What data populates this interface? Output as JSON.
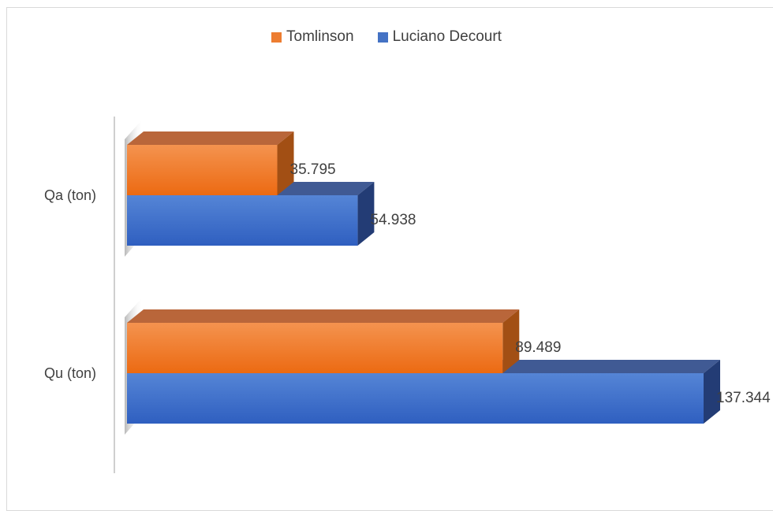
{
  "chart_data": {
    "type": "bar",
    "orientation": "horizontal",
    "style": "3d",
    "categories": [
      "Qa (ton)",
      "Qu (ton)"
    ],
    "series": [
      {
        "name": "Tomlinson",
        "values": [
          35.795,
          89.489
        ],
        "color": "#ED7D31"
      },
      {
        "name": "Luciano Decourt",
        "values": [
          54.938,
          137.344
        ],
        "color": "#4472C4"
      }
    ],
    "value_labels": {
      "Tomlinson": [
        "35.795",
        "89.489"
      ],
      "Luciano Decourt": [
        "54.938",
        "137.344"
      ]
    },
    "legend_position": "top",
    "grid": false,
    "xlim": [
      0,
      137.344
    ]
  }
}
